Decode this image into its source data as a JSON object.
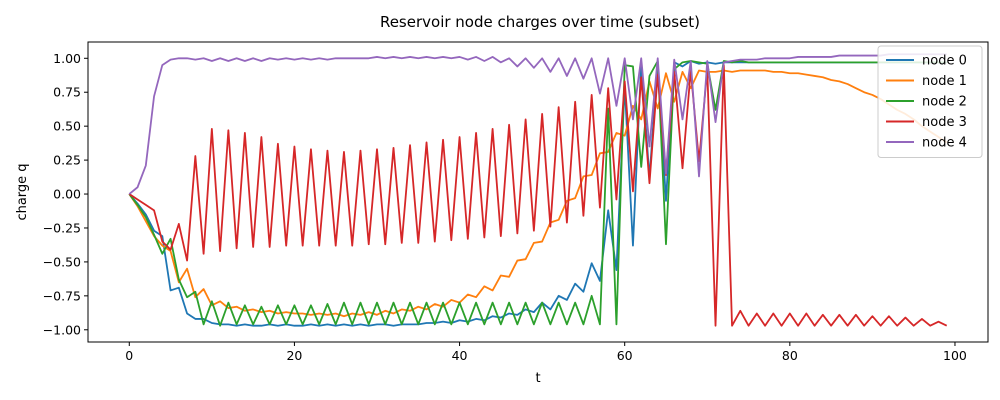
{
  "chart_data": {
    "type": "line",
    "title": "Reservoir node charges over time (subset)",
    "xlabel": "t",
    "ylabel": "charge q",
    "xlim": [
      -5,
      104
    ],
    "ylim": [
      -1.09,
      1.12
    ],
    "xticks": [
      0,
      20,
      40,
      60,
      80,
      100
    ],
    "yticks": [
      -1.0,
      -0.75,
      -0.5,
      -0.25,
      0.0,
      0.25,
      0.5,
      0.75,
      1.0
    ],
    "ytick_labels": [
      "−1.00",
      "−0.75",
      "−0.50",
      "−0.25",
      "0.00",
      "0.25",
      "0.50",
      "0.75",
      "1.00"
    ],
    "legend_position": "top-right",
    "grid": false,
    "series": [
      {
        "name": "node 0",
        "color": "#1f77b4",
        "values": [
          0.0,
          -0.07,
          -0.15,
          -0.27,
          -0.31,
          -0.71,
          -0.69,
          -0.88,
          -0.92,
          -0.92,
          -0.95,
          -0.96,
          -0.96,
          -0.97,
          -0.96,
          -0.97,
          -0.97,
          -0.96,
          -0.97,
          -0.96,
          -0.97,
          -0.97,
          -0.96,
          -0.97,
          -0.96,
          -0.97,
          -0.96,
          -0.97,
          -0.96,
          -0.97,
          -0.96,
          -0.96,
          -0.97,
          -0.96,
          -0.96,
          -0.96,
          -0.95,
          -0.95,
          -0.94,
          -0.95,
          -0.93,
          -0.94,
          -0.92,
          -0.93,
          -0.9,
          -0.91,
          -0.88,
          -0.89,
          -0.85,
          -0.87,
          -0.8,
          -0.85,
          -0.75,
          -0.78,
          -0.66,
          -0.72,
          -0.51,
          -0.64,
          -0.12,
          -0.56,
          0.8,
          -0.38,
          0.97,
          0.12,
          0.97,
          -0.05,
          0.97,
          0.94,
          0.98,
          0.96,
          0.97,
          0.96,
          0.97,
          0.97,
          0.97,
          0.97,
          0.97,
          0.97,
          0.97,
          0.97,
          0.97,
          0.97,
          0.97,
          0.97,
          0.97,
          0.97,
          0.97,
          0.97,
          0.97,
          0.97,
          0.97,
          0.97,
          0.97,
          0.97,
          0.97,
          0.97,
          0.97,
          0.97,
          0.97,
          0.97
        ]
      },
      {
        "name": "node 1",
        "color": "#ff7f0e",
        "values": [
          0.0,
          -0.09,
          -0.2,
          -0.31,
          -0.38,
          -0.42,
          -0.65,
          -0.55,
          -0.76,
          -0.7,
          -0.82,
          -0.79,
          -0.84,
          -0.83,
          -0.86,
          -0.85,
          -0.87,
          -0.86,
          -0.88,
          -0.87,
          -0.88,
          -0.88,
          -0.89,
          -0.88,
          -0.89,
          -0.88,
          -0.9,
          -0.88,
          -0.89,
          -0.87,
          -0.89,
          -0.86,
          -0.88,
          -0.85,
          -0.86,
          -0.83,
          -0.85,
          -0.81,
          -0.83,
          -0.78,
          -0.8,
          -0.74,
          -0.76,
          -0.68,
          -0.71,
          -0.6,
          -0.61,
          -0.49,
          -0.48,
          -0.36,
          -0.35,
          -0.21,
          -0.19,
          -0.05,
          -0.03,
          0.13,
          0.14,
          0.3,
          0.31,
          0.45,
          0.43,
          0.65,
          0.55,
          0.83,
          0.63,
          0.89,
          0.68,
          0.9,
          0.78,
          0.91,
          0.9,
          0.9,
          0.91,
          0.9,
          0.91,
          0.91,
          0.91,
          0.91,
          0.9,
          0.9,
          0.89,
          0.89,
          0.88,
          0.87,
          0.86,
          0.84,
          0.83,
          0.81,
          0.78,
          0.75,
          0.73,
          0.7,
          0.66,
          0.62,
          0.59,
          0.55,
          0.5,
          0.46,
          0.42,
          0.38
        ]
      },
      {
        "name": "node 2",
        "color": "#2ca02c",
        "values": [
          0.0,
          -0.08,
          -0.17,
          -0.3,
          -0.44,
          -0.33,
          -0.63,
          -0.76,
          -0.72,
          -0.96,
          -0.79,
          -0.97,
          -0.8,
          -0.96,
          -0.82,
          -0.96,
          -0.83,
          -0.96,
          -0.82,
          -0.96,
          -0.82,
          -0.96,
          -0.82,
          -0.96,
          -0.81,
          -0.96,
          -0.8,
          -0.96,
          -0.8,
          -0.96,
          -0.8,
          -0.96,
          -0.8,
          -0.96,
          -0.8,
          -0.96,
          -0.8,
          -0.96,
          -0.8,
          -0.96,
          -0.8,
          -0.96,
          -0.8,
          -0.96,
          -0.8,
          -0.96,
          -0.8,
          -0.96,
          -0.8,
          -0.96,
          -0.8,
          -0.96,
          -0.8,
          -0.96,
          -0.8,
          -0.96,
          -0.75,
          -0.96,
          0.63,
          -0.96,
          0.95,
          0.94,
          0.2,
          0.87,
          0.98,
          -0.37,
          0.92,
          0.97,
          0.98,
          0.97,
          0.96,
          0.62,
          0.98,
          0.97,
          0.98,
          0.97,
          0.97,
          0.97,
          0.97,
          0.97,
          0.97,
          0.97,
          0.97,
          0.97,
          0.97,
          0.97,
          0.97,
          0.97,
          0.97,
          0.97,
          0.97,
          0.97,
          0.97,
          0.97,
          0.97,
          0.97,
          0.97,
          0.97,
          0.97,
          0.97
        ]
      },
      {
        "name": "node 3",
        "color": "#d62728",
        "values": [
          0.0,
          -0.04,
          -0.08,
          -0.12,
          -0.35,
          -0.41,
          -0.22,
          -0.49,
          0.28,
          -0.44,
          0.48,
          -0.42,
          0.47,
          -0.4,
          0.45,
          -0.39,
          0.42,
          -0.39,
          0.37,
          -0.38,
          0.35,
          -0.38,
          0.33,
          -0.38,
          0.32,
          -0.38,
          0.31,
          -0.38,
          0.32,
          -0.37,
          0.33,
          -0.37,
          0.34,
          -0.36,
          0.36,
          -0.36,
          0.38,
          -0.35,
          0.4,
          -0.34,
          0.42,
          -0.33,
          0.45,
          -0.32,
          0.48,
          -0.31,
          0.51,
          -0.29,
          0.55,
          -0.27,
          0.59,
          -0.24,
          0.64,
          -0.21,
          0.68,
          -0.16,
          0.73,
          -0.1,
          0.78,
          -0.04,
          0.83,
          0.02,
          0.86,
          0.08,
          0.88,
          0.14,
          0.9,
          0.19,
          0.91,
          0.24,
          0.92,
          -0.97,
          0.95,
          -0.97,
          -0.86,
          -0.97,
          -0.88,
          -0.97,
          -0.88,
          -0.97,
          -0.88,
          -0.97,
          -0.88,
          -0.97,
          -0.89,
          -0.97,
          -0.89,
          -0.97,
          -0.89,
          -0.97,
          -0.9,
          -0.97,
          -0.9,
          -0.97,
          -0.91,
          -0.97,
          -0.92,
          -0.97,
          -0.94,
          -0.97
        ]
      },
      {
        "name": "node 4",
        "color": "#9467bd",
        "values": [
          0.0,
          0.05,
          0.21,
          0.72,
          0.95,
          0.99,
          1.0,
          1.0,
          0.99,
          1.0,
          0.98,
          1.0,
          0.98,
          1.0,
          0.98,
          1.0,
          0.98,
          1.0,
          0.99,
          1.0,
          0.99,
          1.0,
          0.99,
          1.0,
          0.99,
          1.0,
          1.0,
          1.0,
          1.0,
          1.0,
          1.01,
          1.0,
          1.01,
          1.0,
          1.01,
          1.0,
          1.01,
          1.0,
          1.01,
          1.0,
          1.01,
          0.99,
          1.01,
          0.98,
          1.01,
          0.97,
          1.0,
          0.94,
          1.0,
          0.93,
          1.0,
          0.9,
          1.0,
          0.87,
          1.0,
          0.85,
          1.0,
          0.74,
          1.0,
          0.65,
          1.0,
          0.55,
          1.0,
          0.35,
          1.0,
          0.15,
          0.99,
          0.55,
          0.98,
          0.13,
          0.98,
          0.53,
          0.97,
          0.98,
          0.99,
          0.99,
          0.99,
          1.0,
          1.0,
          1.0,
          1.0,
          1.01,
          1.01,
          1.01,
          1.01,
          1.01,
          1.02,
          1.02,
          1.02,
          1.02,
          1.02,
          1.02,
          1.03,
          1.03,
          1.03,
          1.03,
          1.03,
          1.03,
          1.03,
          1.03
        ]
      }
    ]
  }
}
